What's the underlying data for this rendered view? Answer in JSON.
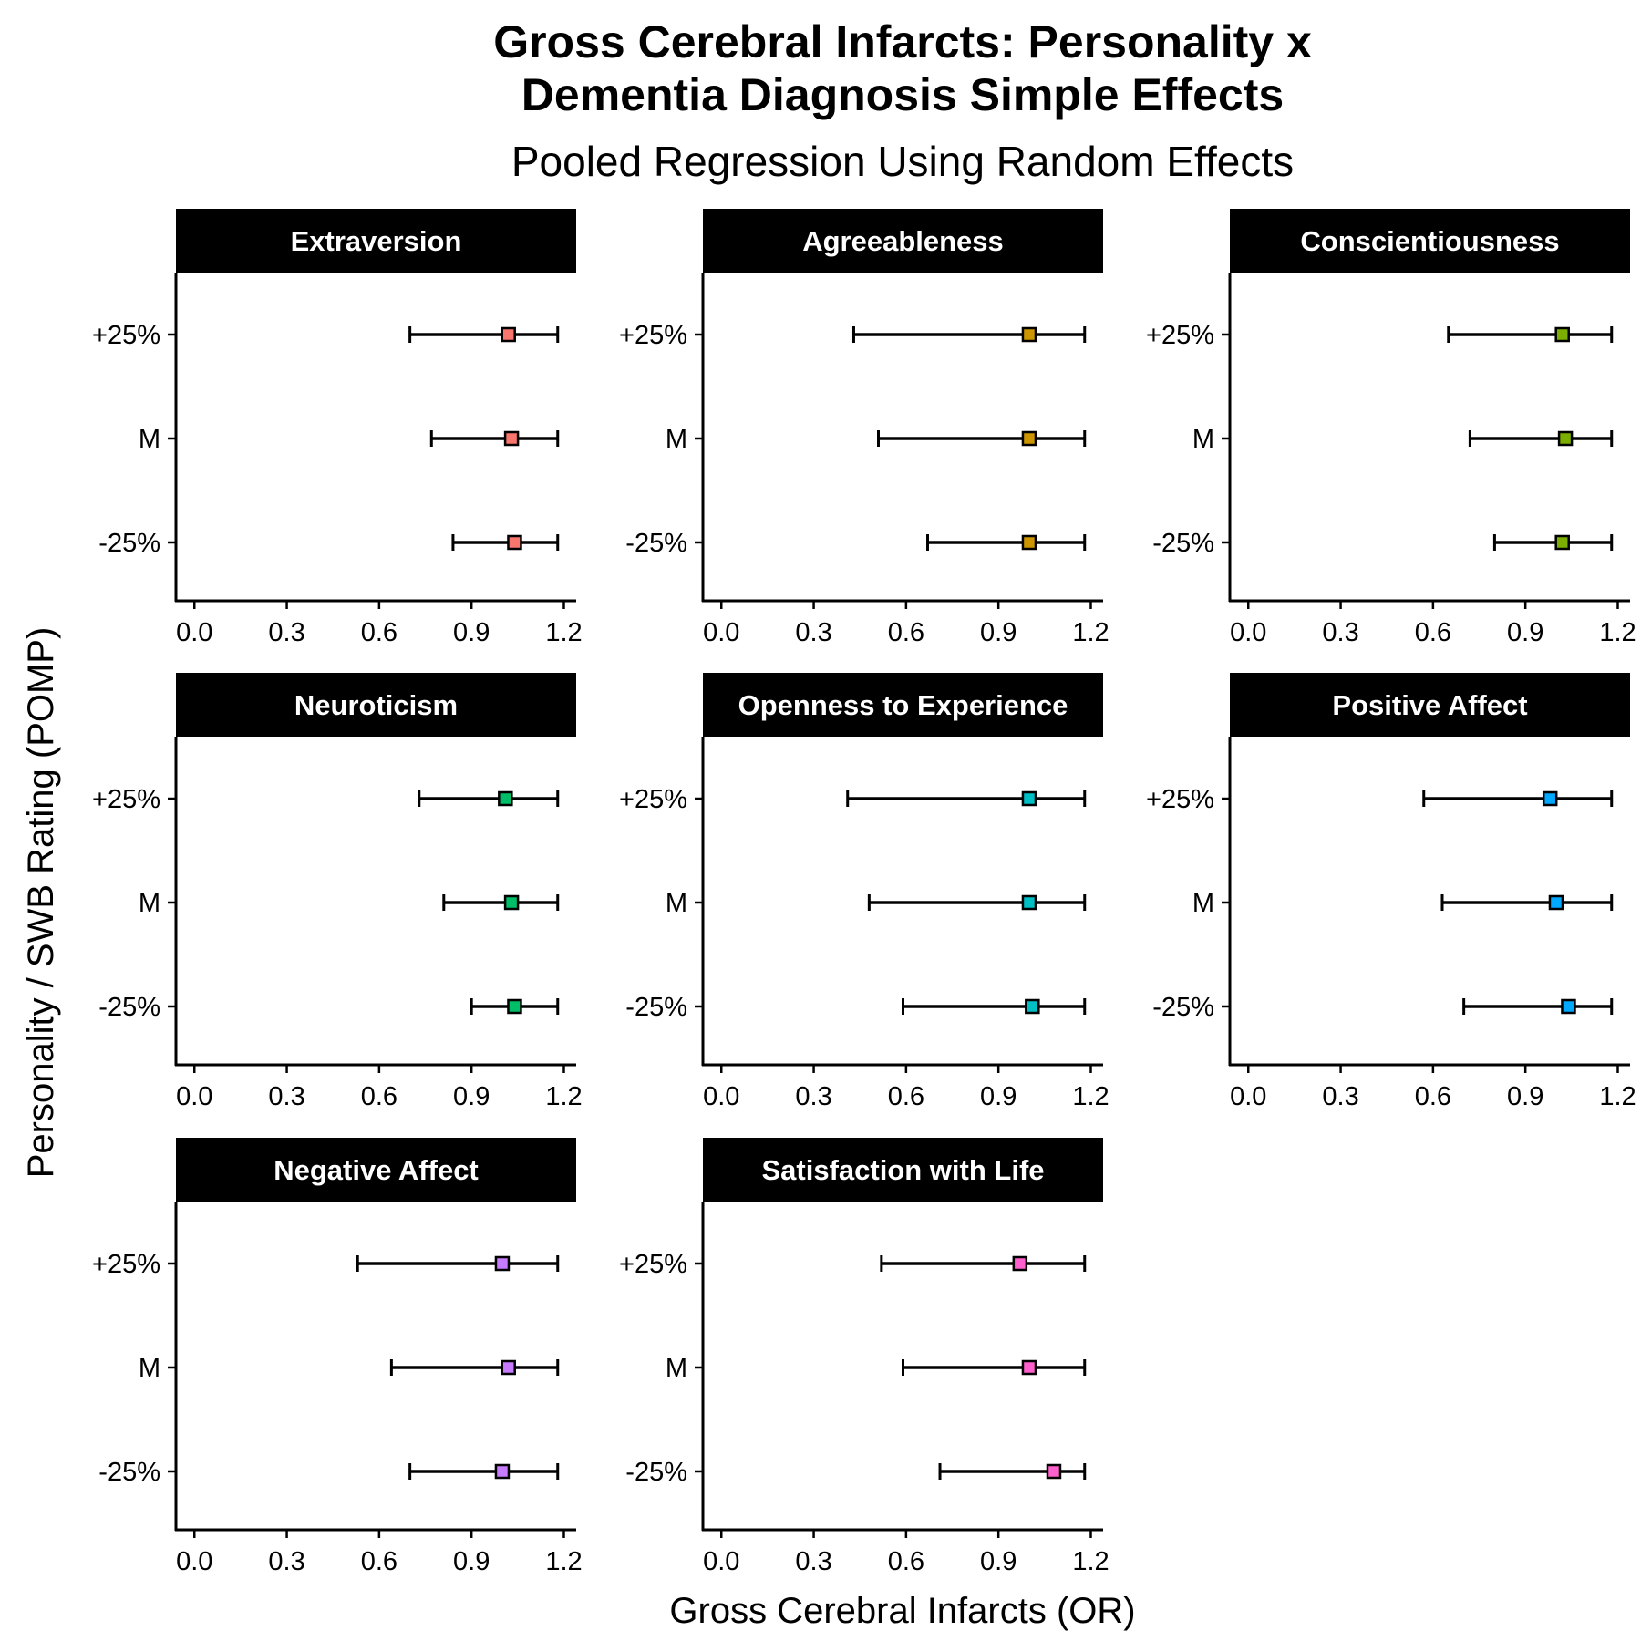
{
  "chart_data": {
    "type": "forest",
    "title_lines": [
      "Gross Cerebral Infarcts: Personality x",
      "Dementia Diagnosis Simple Effects"
    ],
    "subtitle": "Pooled Regression Using Random Effects",
    "xlabel": "Gross Cerebral Infarcts (OR)",
    "ylabel": "Personality / SWB Rating (POMP)",
    "xlim": [
      -0.06,
      1.24
    ],
    "xticks": [
      0.0,
      0.3,
      0.6,
      0.9,
      1.2
    ],
    "xtick_labels": [
      "0.0",
      "0.3",
      "0.6",
      "0.9",
      "1.2"
    ],
    "levels": [
      "+25%",
      "M",
      "-25%"
    ],
    "grid": false,
    "legend": "none",
    "panels": [
      {
        "name": "Extraversion",
        "color": "#F8766D",
        "points": [
          {
            "level": "+25%",
            "estimate": 1.02,
            "lower": 0.7,
            "upper": 1.18
          },
          {
            "level": "M",
            "estimate": 1.03,
            "lower": 0.77,
            "upper": 1.18
          },
          {
            "level": "-25%",
            "estimate": 1.04,
            "lower": 0.84,
            "upper": 1.18
          }
        ]
      },
      {
        "name": "Agreeableness",
        "color": "#CD9600",
        "points": [
          {
            "level": "+25%",
            "estimate": 1.0,
            "lower": 0.43,
            "upper": 1.18
          },
          {
            "level": "M",
            "estimate": 1.0,
            "lower": 0.51,
            "upper": 1.18
          },
          {
            "level": "-25%",
            "estimate": 1.0,
            "lower": 0.67,
            "upper": 1.18
          }
        ]
      },
      {
        "name": "Conscientiousness",
        "color": "#7CAE00",
        "points": [
          {
            "level": "+25%",
            "estimate": 1.02,
            "lower": 0.65,
            "upper": 1.18
          },
          {
            "level": "M",
            "estimate": 1.03,
            "lower": 0.72,
            "upper": 1.18
          },
          {
            "level": "-25%",
            "estimate": 1.02,
            "lower": 0.8,
            "upper": 1.18
          }
        ]
      },
      {
        "name": "Neuroticism",
        "color": "#00BE67",
        "points": [
          {
            "level": "+25%",
            "estimate": 1.01,
            "lower": 0.73,
            "upper": 1.18
          },
          {
            "level": "M",
            "estimate": 1.03,
            "lower": 0.81,
            "upper": 1.18
          },
          {
            "level": "-25%",
            "estimate": 1.04,
            "lower": 0.9,
            "upper": 1.18
          }
        ]
      },
      {
        "name": "Openness to Experience",
        "color": "#00BFC4",
        "points": [
          {
            "level": "+25%",
            "estimate": 1.0,
            "lower": 0.41,
            "upper": 1.18
          },
          {
            "level": "M",
            "estimate": 1.0,
            "lower": 0.48,
            "upper": 1.18
          },
          {
            "level": "-25%",
            "estimate": 1.01,
            "lower": 0.59,
            "upper": 1.18
          }
        ]
      },
      {
        "name": "Positive Affect",
        "color": "#00A9FF",
        "points": [
          {
            "level": "+25%",
            "estimate": 0.98,
            "lower": 0.57,
            "upper": 1.18
          },
          {
            "level": "M",
            "estimate": 1.0,
            "lower": 0.63,
            "upper": 1.18
          },
          {
            "level": "-25%",
            "estimate": 1.04,
            "lower": 0.7,
            "upper": 1.18
          }
        ]
      },
      {
        "name": "Negative Affect",
        "color": "#C77CFF",
        "points": [
          {
            "level": "+25%",
            "estimate": 1.0,
            "lower": 0.53,
            "upper": 1.18
          },
          {
            "level": "M",
            "estimate": 1.02,
            "lower": 0.64,
            "upper": 1.18
          },
          {
            "level": "-25%",
            "estimate": 1.0,
            "lower": 0.7,
            "upper": 1.18
          }
        ]
      },
      {
        "name": "Satisfaction with Life",
        "color": "#FF61CC",
        "points": [
          {
            "level": "+25%",
            "estimate": 0.97,
            "lower": 0.52,
            "upper": 1.18
          },
          {
            "level": "M",
            "estimate": 1.0,
            "lower": 0.59,
            "upper": 1.18
          },
          {
            "level": "-25%",
            "estimate": 1.08,
            "lower": 0.71,
            "upper": 1.18
          }
        ]
      }
    ]
  }
}
